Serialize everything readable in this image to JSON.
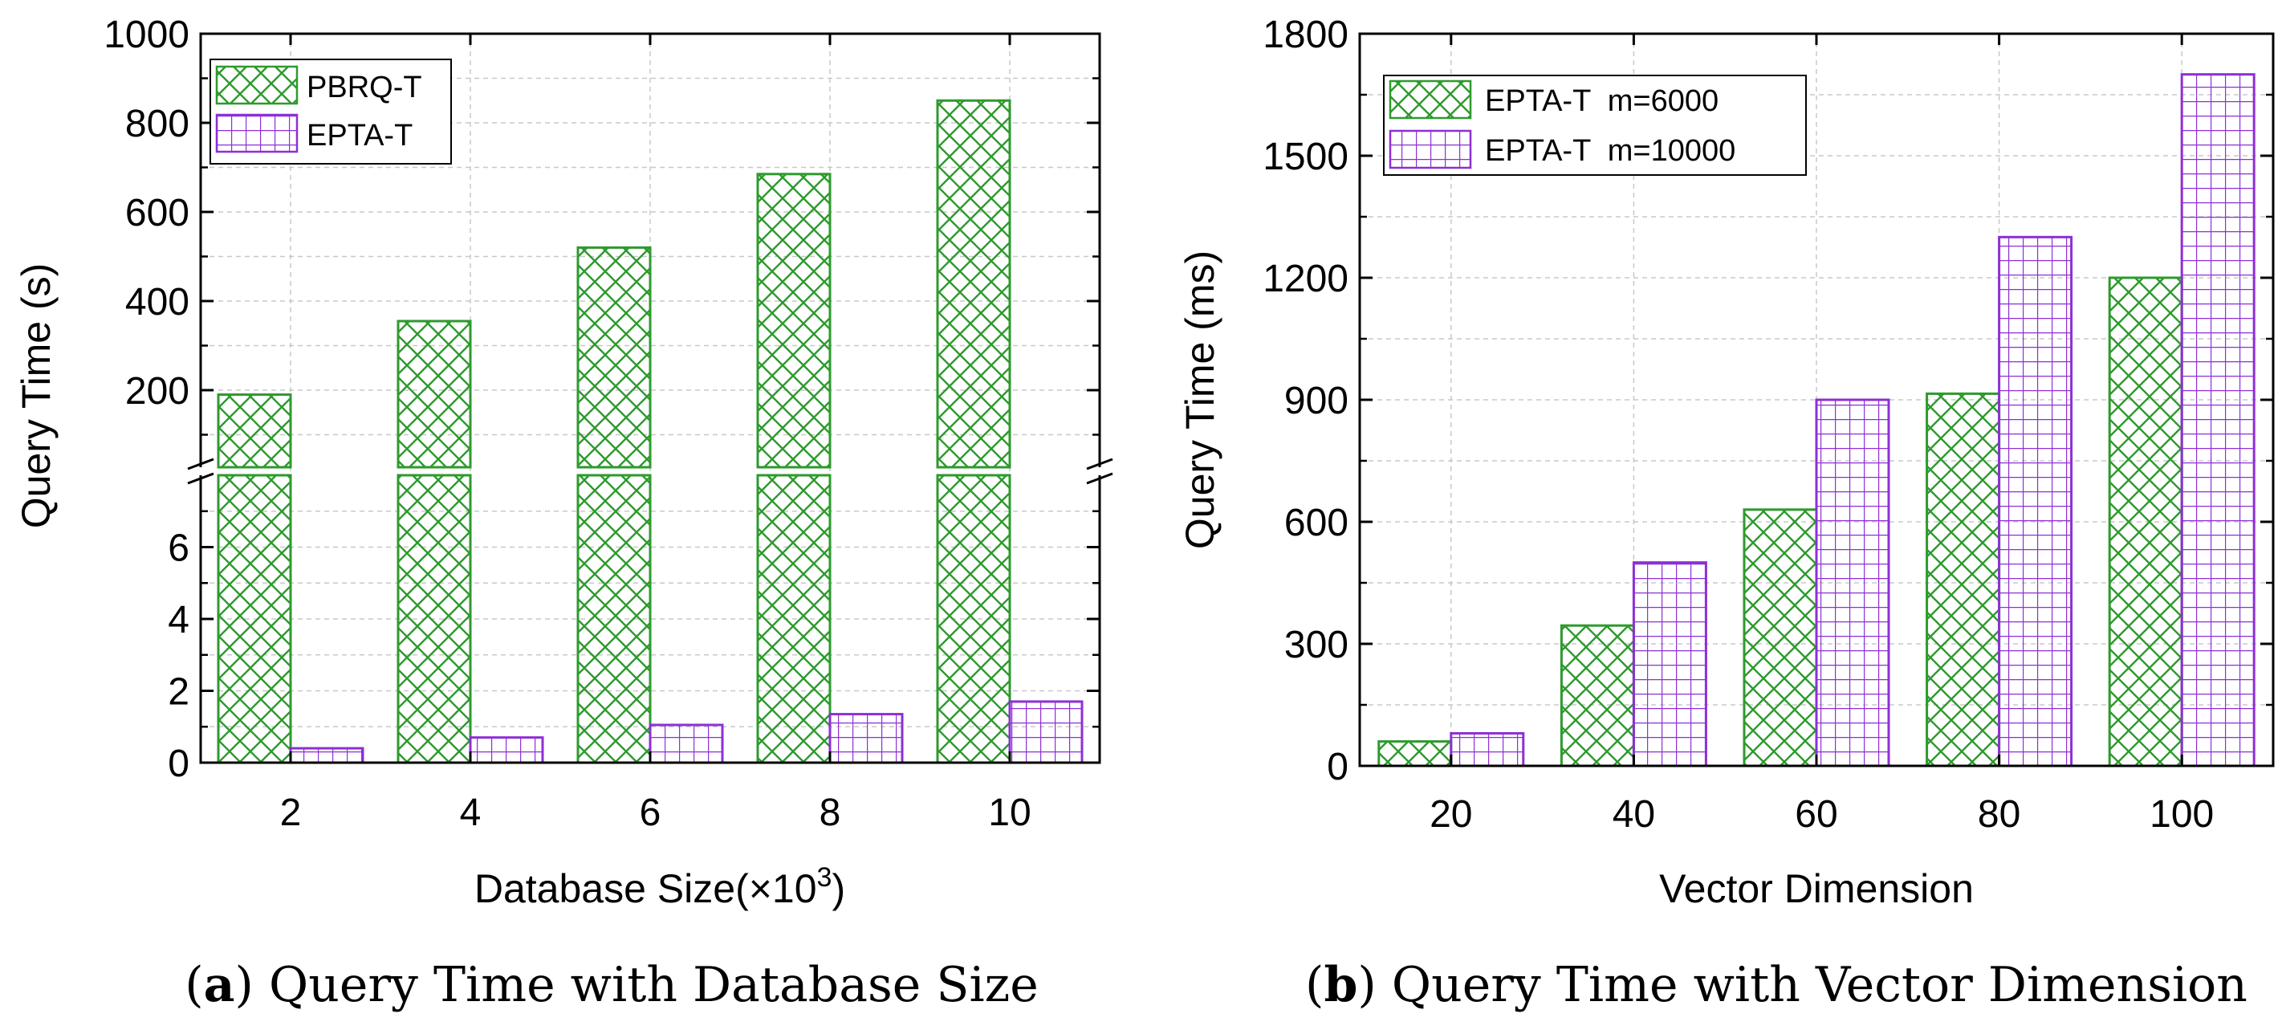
{
  "colors": {
    "green": "#2e9a2e",
    "purple": "#8e2fd6",
    "grid": "#c8c8c8"
  },
  "chart_data": [
    {
      "id": "a",
      "type": "bar",
      "caption_label": "a",
      "caption": "Query Time with Database Size",
      "xlabel": "Database Size(×10",
      "xlabel_sup": "3",
      "xlabel_end": ")",
      "ylabel": "Query Time (s)",
      "categories": [
        "2",
        "4",
        "6",
        "8",
        "10"
      ],
      "broken_axis": {
        "lower": [
          0,
          8
        ],
        "upper": [
          0,
          1000
        ]
      },
      "yticks_lower": [
        "0",
        "2",
        "4",
        "6"
      ],
      "yticks_upper": [
        "200",
        "400",
        "600",
        "800",
        "1000"
      ],
      "series": [
        {
          "name": "PBRQ-T",
          "pattern": "crosshatch",
          "color": "green",
          "values": [
            190,
            355,
            520,
            685,
            850
          ]
        },
        {
          "name": "EPTA-T",
          "pattern": "grid",
          "color": "purple",
          "values": [
            0.4,
            0.7,
            1.05,
            1.35,
            1.7
          ]
        }
      ],
      "grid": true,
      "legend_position": "top-left"
    },
    {
      "id": "b",
      "type": "bar",
      "caption_label": "b",
      "caption": "Query Time with Vector Dimension",
      "xlabel": "Vector Dimension",
      "ylabel": "Query Time (ms)",
      "categories": [
        "20",
        "40",
        "60",
        "80",
        "100"
      ],
      "ylim": [
        0,
        1800
      ],
      "yticks": [
        "0",
        "300",
        "600",
        "900",
        "1200",
        "1500",
        "1800"
      ],
      "series": [
        {
          "name": "EPTA-T  m=6000",
          "pattern": "crosshatch",
          "color": "green",
          "values": [
            60,
            345,
            630,
            915,
            1200
          ]
        },
        {
          "name": "EPTA-T  m=10000",
          "pattern": "grid",
          "color": "purple",
          "values": [
            80,
            500,
            900,
            1300,
            1700
          ]
        }
      ],
      "grid": true,
      "legend_position": "top-left"
    }
  ]
}
